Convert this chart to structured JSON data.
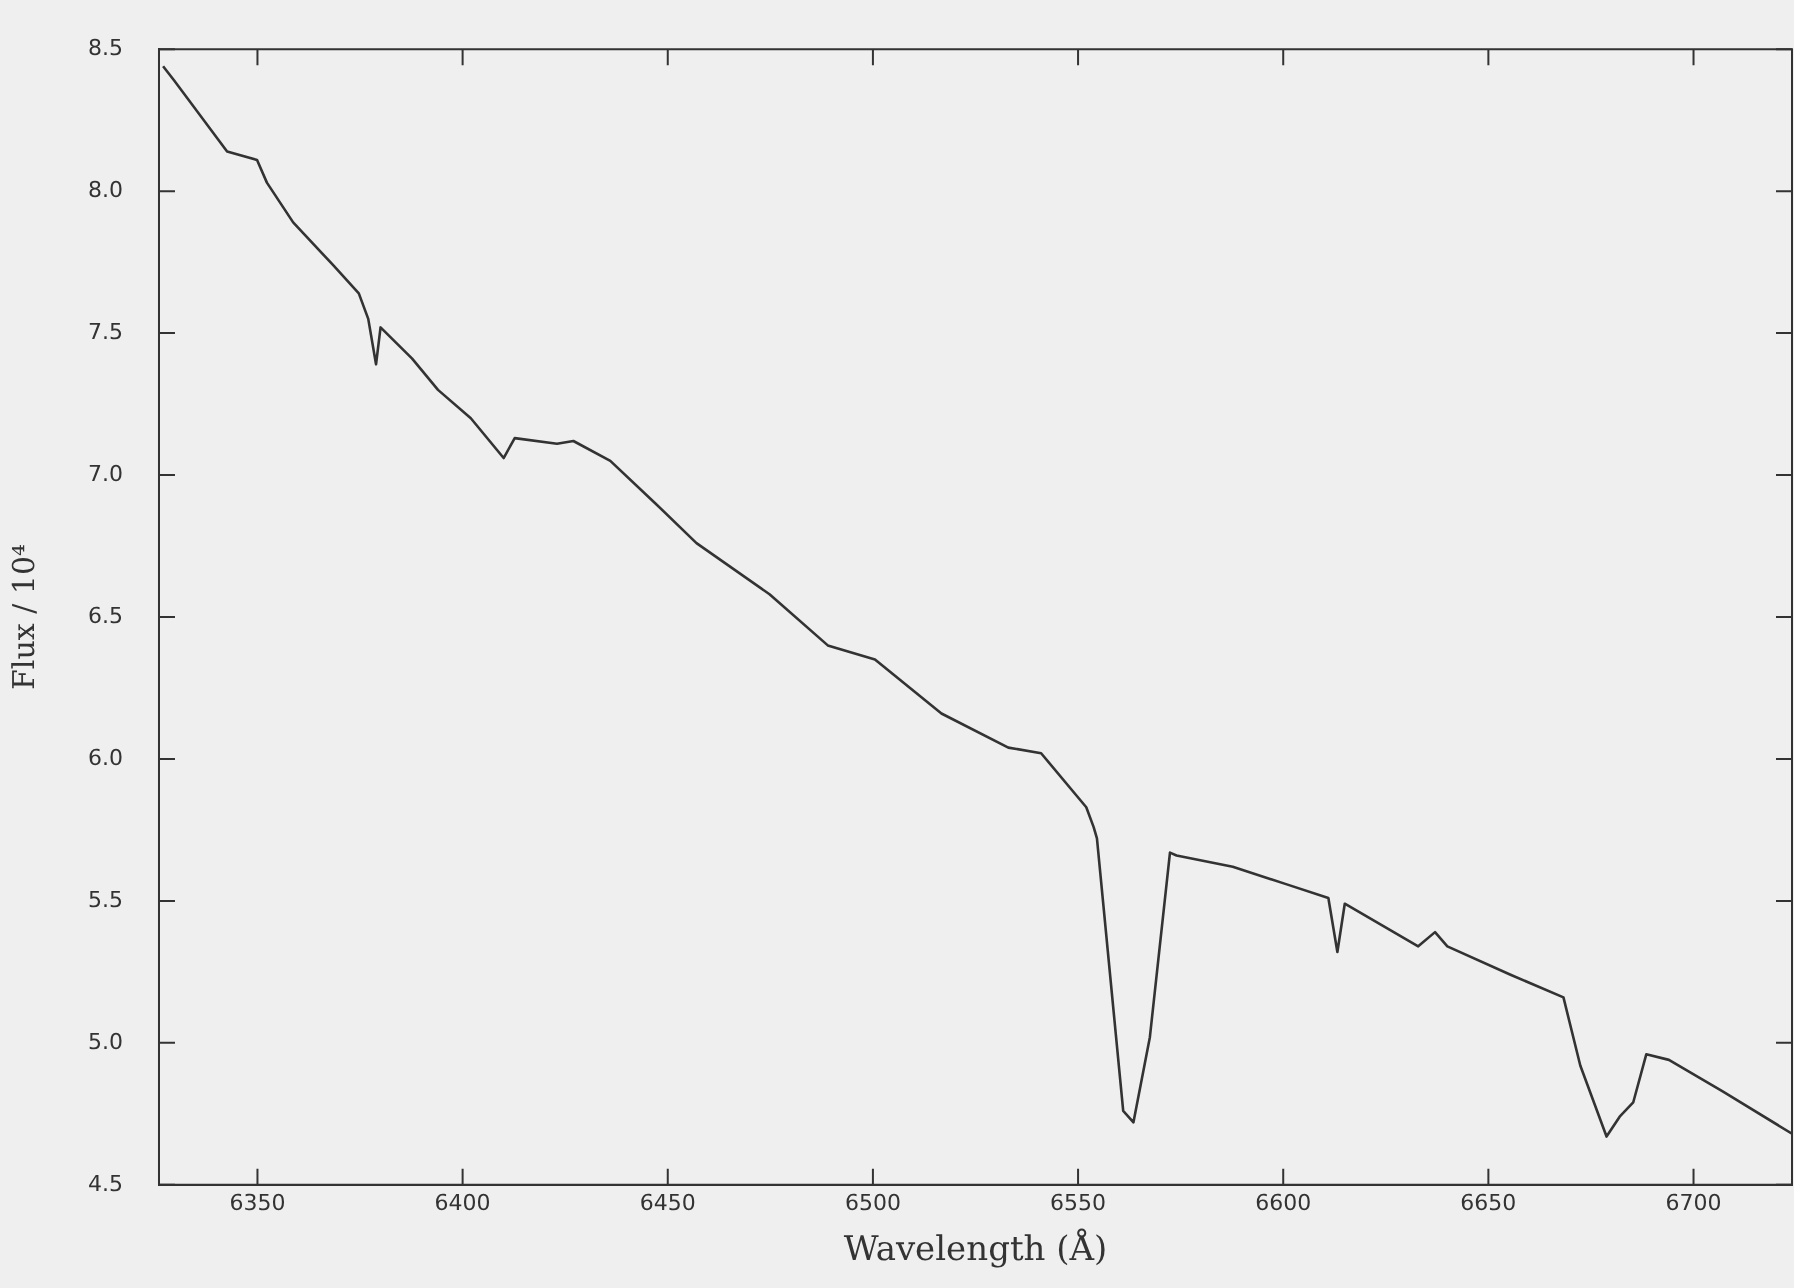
{
  "chart_data": {
    "type": "line",
    "xlabel": "Wavelength (Å)",
    "ylabel": "Flux / 10⁴",
    "xlim": [
      6326,
      6724
    ],
    "ylim": [
      4.5,
      8.5
    ],
    "xticks": [
      6350,
      6400,
      6450,
      6500,
      6550,
      6600,
      6650,
      6700
    ],
    "yticks": [
      4.5,
      {
        "value": 5,
        "label": "5.0"
      },
      5.5,
      {
        "value": 6,
        "label": "6.0"
      },
      6.5,
      {
        "value": 7,
        "label": "7.0"
      },
      7.5,
      {
        "value": 8,
        "label": "8.0"
      },
      8.5
    ],
    "grid": false,
    "legend": false,
    "marker": "none",
    "line_style": "solid",
    "series": [
      {
        "color": "#333333",
        "x": [
          6327,
          6329.7,
          6342.6,
          6349.9,
          6352.3,
          6358.7,
          6368.4,
          6374.7,
          6377,
          6378.9,
          6380,
          6387.7,
          6394,
          6402,
          6410,
          6412.7,
          6423,
          6427,
          6436,
          6447,
          6457,
          6474.8,
          6489,
          6500.5,
          6516.7,
          6533,
          6541,
          6552,
          6553.8,
          6554.6,
          6561,
          6563.5,
          6567.5,
          6572.4,
          6574,
          6587.7,
          6600.5,
          6611,
          6613.2,
          6615,
          6632.9,
          6637,
          6640,
          6655.4,
          6668.3,
          6672.4,
          6678.8,
          6682,
          6685.3,
          6688.5,
          6694,
          6707,
          6724
        ],
        "values": [
          8.44,
          8.39,
          8.14,
          8.11,
          8.03,
          7.89,
          7.74,
          7.64,
          7.55,
          7.39,
          7.52,
          7.41,
          7.3,
          7.2,
          7.06,
          7.13,
          7.11,
          7.12,
          7.05,
          6.9,
          6.76,
          6.58,
          6.4,
          6.35,
          6.16,
          6.04,
          6.02,
          5.83,
          5.76,
          5.72,
          4.76,
          4.72,
          5.02,
          5.67,
          5.66,
          5.62,
          5.56,
          5.51,
          5.32,
          5.49,
          5.34,
          5.39,
          5.34,
          5.24,
          5.16,
          4.92,
          4.67,
          4.74,
          4.79,
          4.96,
          4.94,
          4.83,
          4.68
        ]
      }
    ]
  }
}
